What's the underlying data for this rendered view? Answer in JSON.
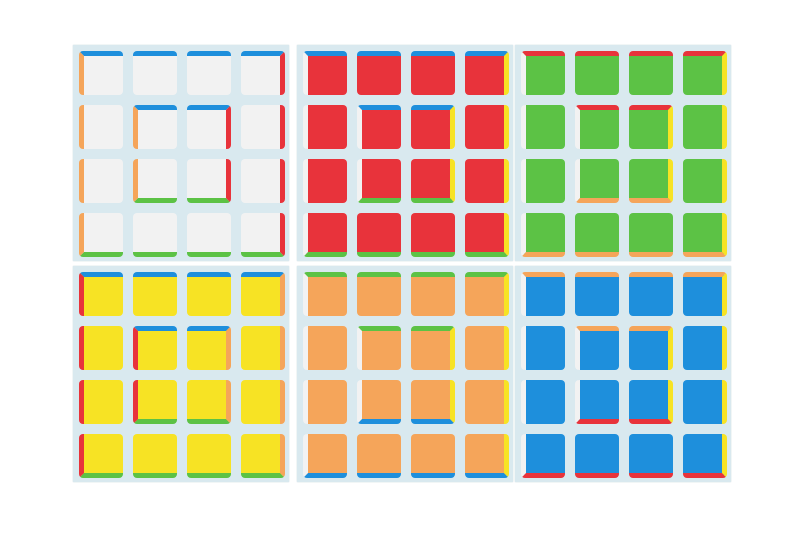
{
  "colors": {
    "white": "#f2f2f2",
    "red": "#e8333b",
    "green": "#5cc245",
    "yellow": "#f7e324",
    "orange": "#f5a55a",
    "blue": "#1e8fdc"
  },
  "panels": [
    {
      "face": "white",
      "top": "blue",
      "left": "orange",
      "right": "red",
      "bottom": "green"
    },
    {
      "face": "red",
      "top": "blue",
      "left": "white",
      "right": "yellow",
      "bottom": "green"
    },
    {
      "face": "green",
      "top": "red",
      "left": "white",
      "right": "yellow",
      "bottom": "orange"
    },
    {
      "face": "yellow",
      "top": "blue",
      "left": "red",
      "right": "orange",
      "bottom": "green"
    },
    {
      "face": "orange",
      "top": "green",
      "left": "white",
      "right": "yellow",
      "bottom": "blue"
    },
    {
      "face": "blue",
      "top": "orange",
      "left": "white",
      "right": "yellow",
      "bottom": "red"
    }
  ]
}
